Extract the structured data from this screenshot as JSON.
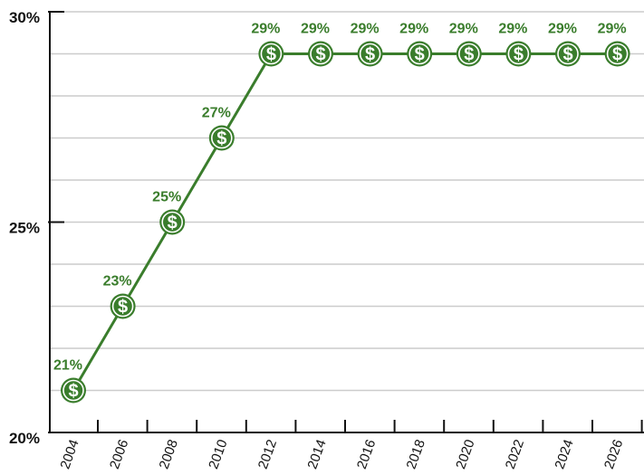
{
  "chart_data": {
    "type": "line",
    "x": [
      "2004",
      "2006",
      "2008",
      "2010",
      "2012",
      "2014",
      "2016",
      "2018",
      "2020",
      "2022",
      "2024",
      "2026"
    ],
    "series": [
      {
        "values": [
          21,
          23,
          25,
          27,
          29,
          29,
          29,
          29,
          29,
          29,
          29,
          29
        ],
        "labels": [
          "21%",
          "23%",
          "25%",
          "27%",
          "29%",
          "29%",
          "29%",
          "29%",
          "29%",
          "29%",
          "29%",
          "29%"
        ]
      }
    ],
    "yticks": [
      {
        "value": 20,
        "label": "20%"
      },
      {
        "value": 25,
        "label": "25%"
      },
      {
        "value": 30,
        "label": "30%"
      }
    ],
    "ylim": [
      20,
      30
    ],
    "minor_grid_step": 1,
    "grid": true,
    "marker_icon": "dollar-coin-icon",
    "marker_symbol": "$",
    "colors": {
      "series": "#3a7d2c",
      "grid": "#cccccc",
      "axis": "#111111"
    }
  }
}
